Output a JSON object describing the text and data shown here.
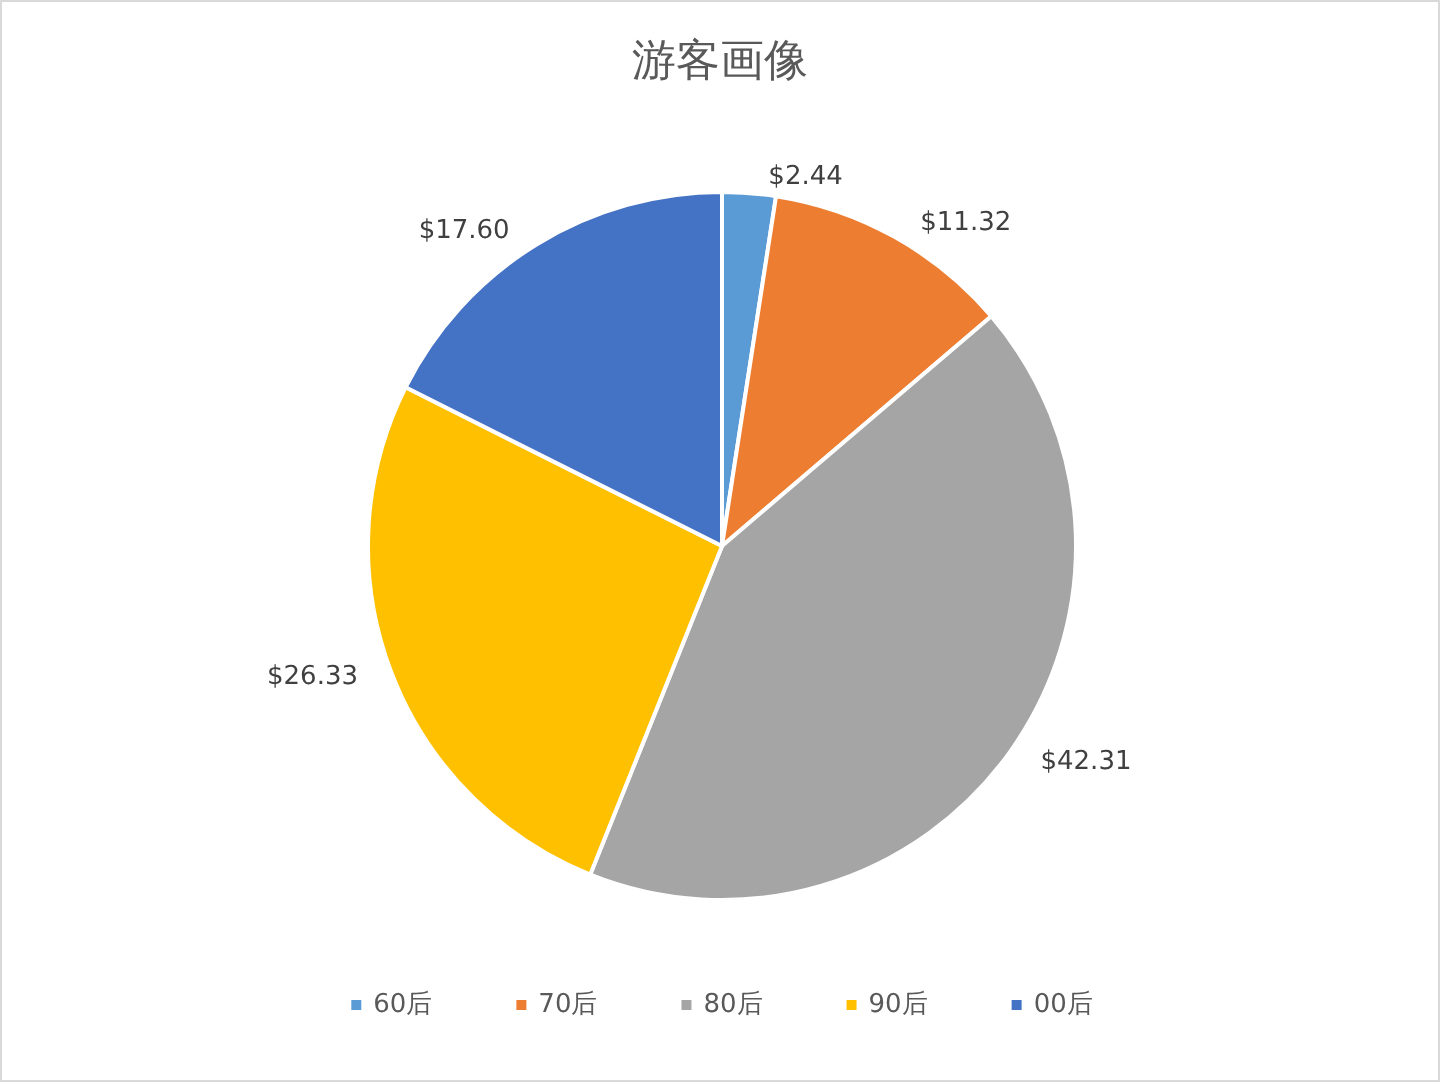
{
  "chart_data": {
    "type": "pie",
    "title": "游客画像",
    "categories": [
      "60后",
      "70后",
      "80后",
      "90后",
      "00后"
    ],
    "values": [
      2.44,
      11.32,
      42.31,
      26.33,
      17.6
    ],
    "value_labels": [
      "$2.44",
      "$11.32",
      "$42.31",
      "$26.33",
      "$17.60"
    ],
    "colors": [
      "#5b9bd5",
      "#ed7d31",
      "#a5a5a5",
      "#ffc000",
      "#4472c4"
    ],
    "legend": "bottom"
  }
}
